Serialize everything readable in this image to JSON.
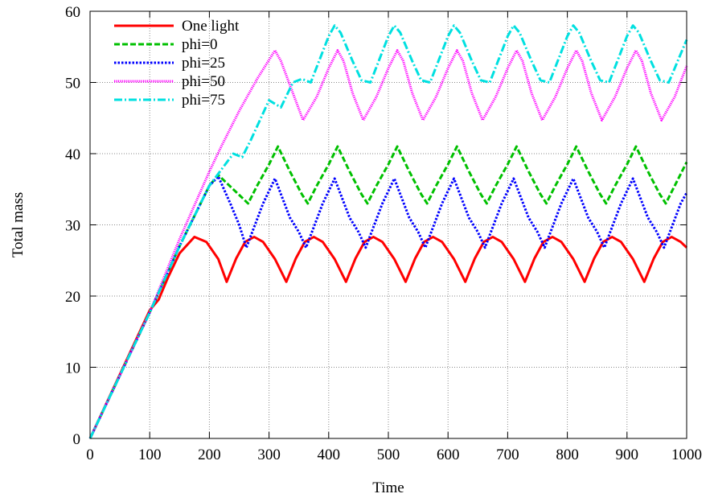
{
  "chart_data": {
    "type": "line",
    "title": "",
    "xlabel": "Time",
    "ylabel": "Total mass",
    "xlim": [
      0,
      1000
    ],
    "ylim": [
      0,
      60
    ],
    "xticks": [
      0,
      100,
      200,
      300,
      400,
      500,
      600,
      700,
      800,
      900,
      1000
    ],
    "yticks": [
      0,
      10,
      20,
      30,
      40,
      50,
      60
    ],
    "grid": true,
    "legend_position": "top-left",
    "series": [
      {
        "name": "One light",
        "color": "#ff0000",
        "dash": "solid",
        "x": [
          0,
          100,
          115,
          130,
          150,
          175,
          195,
          215,
          229,
          245,
          260,
          275,
          290,
          310,
          329,
          345,
          360,
          375,
          390,
          410,
          429,
          445,
          460,
          475,
          490,
          510,
          529,
          545,
          560,
          575,
          590,
          610,
          629,
          645,
          660,
          675,
          690,
          710,
          729,
          745,
          760,
          775,
          790,
          810,
          829,
          845,
          860,
          875,
          890,
          910,
          929,
          945,
          960,
          975,
          990,
          1000
        ],
        "y": [
          0,
          18,
          19.5,
          22.5,
          26,
          28.3,
          27.6,
          25.2,
          22,
          25.3,
          27.6,
          28.3,
          27.6,
          25.2,
          22,
          25.3,
          27.6,
          28.3,
          27.6,
          25.2,
          22,
          25.3,
          27.6,
          28.3,
          27.6,
          25.2,
          22,
          25.3,
          27.6,
          28.3,
          27.6,
          25.2,
          22,
          25.3,
          27.6,
          28.3,
          27.6,
          25.2,
          22,
          25.3,
          27.6,
          28.3,
          27.6,
          25.2,
          22,
          25.3,
          27.6,
          28.3,
          27.6,
          25.2,
          22,
          25.3,
          27.6,
          28.3,
          27.6,
          26.8
        ]
      },
      {
        "name": "phi=0",
        "color": "#00c000",
        "dash": "dashed",
        "x": [
          0,
          100,
          150,
          200,
          215,
          240,
          265,
          280,
          300,
          315,
          335,
          355,
          365,
          380,
          400,
          415,
          435,
          455,
          465,
          480,
          500,
          515,
          535,
          555,
          565,
          580,
          600,
          615,
          635,
          655,
          665,
          680,
          700,
          715,
          735,
          755,
          765,
          780,
          800,
          815,
          835,
          855,
          865,
          880,
          900,
          915,
          935,
          955,
          965,
          980,
          1000
        ],
        "y": [
          0,
          17.7,
          27,
          35.5,
          37,
          35,
          33,
          35.5,
          38.5,
          41,
          37.5,
          34.3,
          33,
          35.5,
          38.5,
          41,
          37.5,
          34.3,
          33,
          35.5,
          38.5,
          41,
          37.5,
          34.3,
          33,
          35.5,
          38.5,
          41,
          37.5,
          34.3,
          33,
          35.5,
          38.5,
          41,
          37.5,
          34.3,
          33,
          35.5,
          38.5,
          41,
          37.5,
          34.3,
          33,
          35.5,
          38.5,
          41,
          37.5,
          34.3,
          33,
          35.5,
          38.8
        ]
      },
      {
        "name": "phi=25",
        "color": "#0000ff",
        "dash": "dotted",
        "x": [
          0,
          100,
          150,
          200,
          215,
          235,
          250,
          262,
          290,
          310,
          335,
          350,
          362,
          390,
          410,
          435,
          450,
          462,
          490,
          510,
          535,
          550,
          562,
          590,
          610,
          635,
          650,
          662,
          690,
          710,
          735,
          750,
          762,
          790,
          810,
          835,
          850,
          862,
          890,
          910,
          935,
          950,
          962,
          990,
          1000
        ],
        "y": [
          0,
          17.7,
          27,
          35.5,
          36.8,
          33,
          30,
          26.8,
          33,
          36.5,
          31,
          29,
          26.8,
          33,
          36.5,
          31,
          29,
          26.8,
          33,
          36.5,
          31,
          29,
          26.8,
          33,
          36.5,
          31,
          29,
          26.8,
          33,
          36.5,
          31,
          29,
          26.8,
          33,
          36.5,
          31,
          29,
          26.8,
          33,
          36.5,
          31,
          29,
          26.8,
          33,
          34.5
        ]
      },
      {
        "name": "phi=50",
        "color": "#ff00ff",
        "dash": "fine-dotted",
        "x": [
          0,
          100,
          150,
          200,
          220,
          250,
          280,
          310,
          320,
          340,
          357,
          380,
          400,
          415,
          425,
          440,
          458,
          480,
          500,
          515,
          525,
          540,
          558,
          580,
          600,
          615,
          625,
          640,
          658,
          680,
          700,
          715,
          725,
          740,
          758,
          780,
          800,
          815,
          825,
          840,
          858,
          880,
          900,
          915,
          925,
          940,
          958,
          980,
          1000
        ],
        "y": [
          0,
          17.7,
          28,
          37.5,
          41,
          46,
          50.5,
          54.5,
          53,
          48.5,
          44.7,
          48,
          52,
          54.5,
          53,
          48.5,
          44.7,
          48,
          52,
          54.5,
          53,
          48.5,
          44.7,
          48,
          52,
          54.5,
          53,
          48.5,
          44.7,
          48,
          52,
          54.5,
          53,
          48.5,
          44.7,
          48,
          52,
          54.5,
          53,
          48.5,
          44.7,
          48,
          52,
          54.5,
          53,
          48.5,
          44.7,
          48,
          52.3
        ]
      },
      {
        "name": "phi=75",
        "color": "#00e0e0",
        "dash": "dash-dot",
        "x": [
          0,
          100,
          150,
          200,
          240,
          255,
          270,
          300,
          310,
          320,
          340,
          355,
          370,
          400,
          410,
          420,
          440,
          455,
          470,
          500,
          510,
          520,
          540,
          555,
          570,
          600,
          610,
          620,
          640,
          655,
          670,
          700,
          710,
          720,
          740,
          755,
          770,
          800,
          810,
          820,
          840,
          855,
          870,
          900,
          910,
          920,
          940,
          955,
          970,
          1000
        ],
        "y": [
          0,
          17.7,
          27,
          35.5,
          40,
          39.5,
          42,
          47.5,
          47,
          46.5,
          50,
          50.5,
          50,
          56.5,
          58,
          57,
          53,
          50.3,
          50,
          56.5,
          58,
          57,
          53,
          50.3,
          50,
          56.5,
          58,
          57,
          53,
          50.3,
          50,
          56.5,
          58,
          57,
          53,
          50.3,
          50,
          56.5,
          58,
          57,
          53,
          50.3,
          50,
          56.5,
          58,
          57,
          53,
          50.3,
          50,
          56
        ]
      }
    ]
  }
}
